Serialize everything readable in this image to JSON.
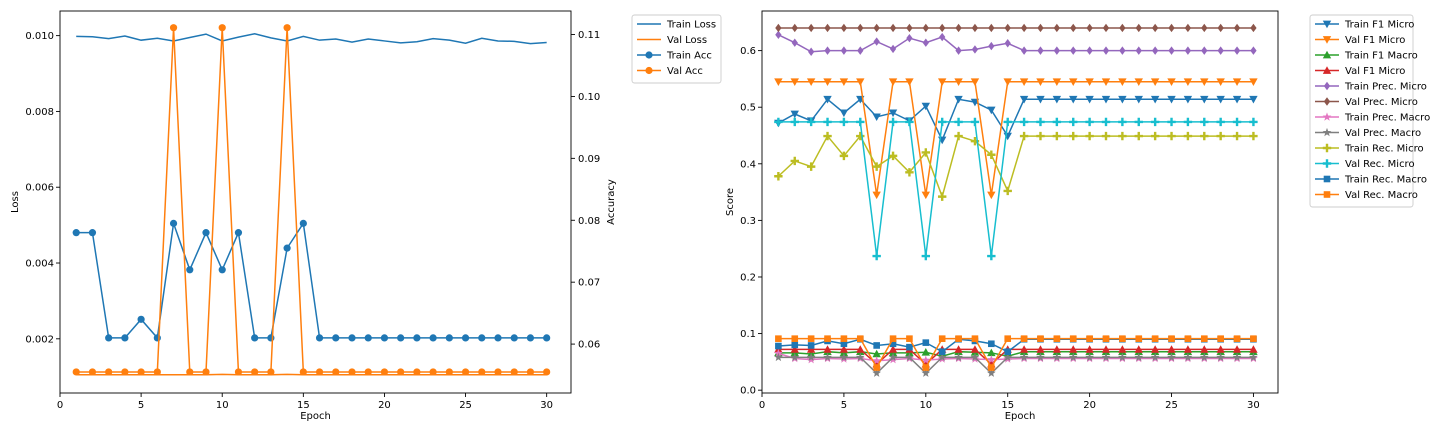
{
  "chart_data": [
    {
      "type": "line",
      "xlabel": "Epoch",
      "ylabel": "Loss",
      "y2label": "Accuracy",
      "xlim": [
        0,
        31.5
      ],
      "ylim": [
        0.00057,
        0.01065
      ],
      "y2lim": [
        0.0521,
        0.1138
      ],
      "xticks": [
        0,
        5,
        10,
        15,
        20,
        25,
        30
      ],
      "yticks": [
        0.002,
        0.004,
        0.006,
        0.008,
        0.01
      ],
      "ytick_labels": [
        "0.002",
        "0.004",
        "0.006",
        "0.008",
        "0.010"
      ],
      "y2ticks": [
        0.06,
        0.07,
        0.08,
        0.09,
        0.1,
        0.11
      ],
      "y2tick_labels": [
        "0.06",
        "0.07",
        "0.08",
        "0.09",
        "0.10",
        "0.11"
      ],
      "legend_position": "outside-right-top",
      "grid": false,
      "x": [
        1,
        2,
        3,
        4,
        5,
        6,
        7,
        8,
        9,
        10,
        11,
        12,
        13,
        14,
        15,
        16,
        17,
        18,
        19,
        20,
        21,
        22,
        23,
        24,
        25,
        26,
        27,
        28,
        29,
        30
      ],
      "series": [
        {
          "name": "Train Loss",
          "axis": "left",
          "color": "#1f77b4",
          "marker": "none",
          "values": [
            0.00998,
            0.00997,
            0.00992,
            0.00999,
            0.00988,
            0.00993,
            0.00986,
            0.00995,
            0.01004,
            0.00986,
            0.00996,
            0.01005,
            0.00994,
            0.00986,
            0.00998,
            0.00988,
            0.00991,
            0.00983,
            0.00991,
            0.00986,
            0.00981,
            0.00984,
            0.00992,
            0.00988,
            0.0098,
            0.00993,
            0.00986,
            0.00985,
            0.00979,
            0.00982
          ]
        },
        {
          "name": "Val Loss",
          "axis": "left",
          "color": "#ff7f0e",
          "marker": "none",
          "values": [
            0.00105,
            0.00105,
            0.00105,
            0.00105,
            0.00105,
            0.00105,
            0.00105,
            0.00105,
            0.00105,
            0.00106,
            0.00105,
            0.00105,
            0.00105,
            0.00106,
            0.00105,
            0.00105,
            0.00105,
            0.00105,
            0.00105,
            0.00105,
            0.00105,
            0.00105,
            0.00105,
            0.00105,
            0.00105,
            0.00105,
            0.00105,
            0.00105,
            0.00105,
            0.00105
          ]
        },
        {
          "name": "Train Acc",
          "axis": "right",
          "color": "#1f77b4",
          "marker": "circle",
          "values": [
            0.078,
            0.078,
            0.061,
            0.061,
            0.064,
            0.061,
            0.0795,
            0.072,
            0.078,
            0.072,
            0.078,
            0.061,
            0.061,
            0.0755,
            0.0795,
            0.061,
            0.061,
            0.061,
            0.061,
            0.061,
            0.061,
            0.061,
            0.061,
            0.061,
            0.061,
            0.061,
            0.061,
            0.061,
            0.061,
            0.061
          ]
        },
        {
          "name": "Val Acc",
          "axis": "right",
          "color": "#ff7f0e",
          "marker": "circle",
          "values": [
            0.0555,
            0.0555,
            0.0555,
            0.0555,
            0.0555,
            0.0555,
            0.1111,
            0.0555,
            0.0555,
            0.1111,
            0.0555,
            0.0555,
            0.0555,
            0.1111,
            0.0555,
            0.0555,
            0.0555,
            0.0555,
            0.0555,
            0.0555,
            0.0555,
            0.0555,
            0.0555,
            0.0555,
            0.0555,
            0.0555,
            0.0555,
            0.0555,
            0.0555,
            0.0555
          ]
        }
      ]
    },
    {
      "type": "line",
      "xlabel": "Epoch",
      "ylabel": "Score",
      "xlim": [
        0,
        31.5
      ],
      "ylim": [
        -0.005,
        0.67
      ],
      "xticks": [
        0,
        5,
        10,
        15,
        20,
        25,
        30
      ],
      "yticks": [
        0.0,
        0.1,
        0.2,
        0.3,
        0.4,
        0.5,
        0.6
      ],
      "ytick_labels": [
        "0.0",
        "0.1",
        "0.2",
        "0.3",
        "0.4",
        "0.5",
        "0.6"
      ],
      "legend_position": "outside-right-top",
      "grid": false,
      "x": [
        1,
        2,
        3,
        4,
        5,
        6,
        7,
        8,
        9,
        10,
        11,
        12,
        13,
        14,
        15,
        16,
        17,
        18,
        19,
        20,
        21,
        22,
        23,
        24,
        25,
        26,
        27,
        28,
        29,
        30
      ],
      "series": [
        {
          "name": "Train F1 Micro",
          "color": "#1f77b4",
          "marker": "triangle-down",
          "values": [
            0.472,
            0.488,
            0.476,
            0.514,
            0.49,
            0.514,
            0.483,
            0.49,
            0.476,
            0.502,
            0.442,
            0.514,
            0.509,
            0.495,
            0.449,
            0.514,
            0.514,
            0.514,
            0.514,
            0.514,
            0.514,
            0.514,
            0.514,
            0.514,
            0.514,
            0.514,
            0.514,
            0.514,
            0.514,
            0.514
          ]
        },
        {
          "name": "Val F1 Micro",
          "color": "#ff7f0e",
          "marker": "triangle-down",
          "values": [
            0.545,
            0.545,
            0.545,
            0.545,
            0.545,
            0.545,
            0.345,
            0.545,
            0.545,
            0.345,
            0.545,
            0.545,
            0.545,
            0.345,
            0.545,
            0.545,
            0.545,
            0.545,
            0.545,
            0.545,
            0.545,
            0.545,
            0.545,
            0.545,
            0.545,
            0.545,
            0.545,
            0.545,
            0.545,
            0.545
          ]
        },
        {
          "name": "Train F1 Macro",
          "color": "#2ca02c",
          "marker": "triangle-up",
          "values": [
            0.066,
            0.066,
            0.064,
            0.068,
            0.066,
            0.068,
            0.064,
            0.066,
            0.066,
            0.067,
            0.06,
            0.068,
            0.067,
            0.066,
            0.06,
            0.068,
            0.068,
            0.068,
            0.068,
            0.068,
            0.068,
            0.068,
            0.068,
            0.068,
            0.068,
            0.068,
            0.068,
            0.068,
            0.068,
            0.068
          ]
        },
        {
          "name": "Val F1 Micro",
          "color": "#d62728",
          "marker": "triangle-up",
          "values": [
            0.072,
            0.072,
            0.072,
            0.072,
            0.072,
            0.072,
            0.046,
            0.072,
            0.072,
            0.046,
            0.072,
            0.072,
            0.072,
            0.046,
            0.072,
            0.072,
            0.072,
            0.072,
            0.072,
            0.072,
            0.072,
            0.072,
            0.072,
            0.072,
            0.072,
            0.072,
            0.072,
            0.072,
            0.072,
            0.072
          ]
        },
        {
          "name": "Train Prec. Micro",
          "color": "#9467bd",
          "marker": "diamond",
          "values": [
            0.628,
            0.614,
            0.598,
            0.6,
            0.6,
            0.6,
            0.616,
            0.603,
            0.622,
            0.614,
            0.624,
            0.6,
            0.602,
            0.608,
            0.613,
            0.6,
            0.6,
            0.6,
            0.6,
            0.6,
            0.6,
            0.6,
            0.6,
            0.6,
            0.6,
            0.6,
            0.6,
            0.6,
            0.6,
            0.6
          ]
        },
        {
          "name": "Val Prec. Micro",
          "color": "#8c564b",
          "marker": "diamond",
          "values": [
            0.64,
            0.64,
            0.64,
            0.64,
            0.64,
            0.64,
            0.64,
            0.64,
            0.64,
            0.64,
            0.64,
            0.64,
            0.64,
            0.64,
            0.64,
            0.64,
            0.64,
            0.64,
            0.64,
            0.64,
            0.64,
            0.64,
            0.64,
            0.64,
            0.64,
            0.64,
            0.64,
            0.64,
            0.64,
            0.64
          ]
        },
        {
          "name": "Train Prec. Macro",
          "color": "#e377c2",
          "marker": "star",
          "values": [
            0.065,
            0.056,
            0.054,
            0.056,
            0.055,
            0.056,
            0.052,
            0.054,
            0.056,
            0.053,
            0.055,
            0.056,
            0.055,
            0.054,
            0.055,
            0.056,
            0.056,
            0.056,
            0.056,
            0.056,
            0.056,
            0.056,
            0.056,
            0.056,
            0.056,
            0.056,
            0.056,
            0.056,
            0.056,
            0.056
          ]
        },
        {
          "name": "Val Prec. Macro",
          "color": "#7f7f7f",
          "marker": "star",
          "values": [
            0.058,
            0.058,
            0.058,
            0.058,
            0.058,
            0.058,
            0.03,
            0.058,
            0.058,
            0.03,
            0.058,
            0.058,
            0.058,
            0.03,
            0.058,
            0.058,
            0.058,
            0.058,
            0.058,
            0.058,
            0.058,
            0.058,
            0.058,
            0.058,
            0.058,
            0.058,
            0.058,
            0.058,
            0.058,
            0.058
          ]
        },
        {
          "name": "Train Rec. Micro",
          "color": "#bcbd22",
          "marker": "plus",
          "values": [
            0.378,
            0.405,
            0.395,
            0.449,
            0.414,
            0.449,
            0.395,
            0.414,
            0.385,
            0.42,
            0.342,
            0.449,
            0.44,
            0.416,
            0.352,
            0.449,
            0.449,
            0.449,
            0.449,
            0.449,
            0.449,
            0.449,
            0.449,
            0.449,
            0.449,
            0.449,
            0.449,
            0.449,
            0.449,
            0.449
          ]
        },
        {
          "name": "Val Rec. Micro",
          "color": "#17becf",
          "marker": "plus",
          "values": [
            0.474,
            0.474,
            0.474,
            0.474,
            0.474,
            0.474,
            0.237,
            0.474,
            0.474,
            0.237,
            0.474,
            0.474,
            0.474,
            0.237,
            0.474,
            0.474,
            0.474,
            0.474,
            0.474,
            0.474,
            0.474,
            0.474,
            0.474,
            0.474,
            0.474,
            0.474,
            0.474,
            0.474,
            0.474,
            0.474
          ]
        },
        {
          "name": "Train Rec. Macro",
          "color": "#1f77b4",
          "marker": "square",
          "values": [
            0.078,
            0.08,
            0.079,
            0.087,
            0.082,
            0.09,
            0.079,
            0.082,
            0.076,
            0.084,
            0.068,
            0.09,
            0.087,
            0.082,
            0.068,
            0.09,
            0.09,
            0.09,
            0.09,
            0.09,
            0.09,
            0.09,
            0.09,
            0.09,
            0.09,
            0.09,
            0.09,
            0.09,
            0.09,
            0.09
          ]
        },
        {
          "name": "Val Rec. Macro",
          "color": "#ff7f0e",
          "marker": "square",
          "values": [
            0.091,
            0.091,
            0.091,
            0.091,
            0.091,
            0.091,
            0.04,
            0.091,
            0.091,
            0.04,
            0.091,
            0.091,
            0.091,
            0.04,
            0.091,
            0.091,
            0.091,
            0.091,
            0.091,
            0.091,
            0.091,
            0.091,
            0.091,
            0.091,
            0.091,
            0.091,
            0.091,
            0.091,
            0.091,
            0.091
          ]
        }
      ]
    }
  ]
}
